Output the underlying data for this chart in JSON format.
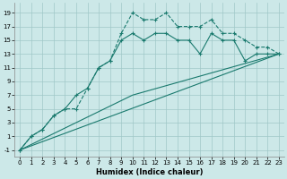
{
  "xlabel": "Humidex (Indice chaleur)",
  "bg_color": "#cce8e8",
  "grid_color": "#a0c8c8",
  "line_color": "#1a7a6e",
  "xlim": [
    -0.5,
    23.5
  ],
  "ylim": [
    -2,
    20.5
  ],
  "xticks": [
    0,
    1,
    2,
    3,
    4,
    5,
    6,
    7,
    8,
    9,
    10,
    11,
    12,
    13,
    14,
    15,
    16,
    17,
    18,
    19,
    20,
    21,
    22,
    23
  ],
  "yticks": [
    -1,
    1,
    3,
    5,
    7,
    9,
    11,
    13,
    15,
    17,
    19
  ],
  "line1_x": [
    0,
    1,
    2,
    3,
    4,
    5,
    6,
    7,
    8,
    9,
    10,
    11,
    12,
    13,
    14,
    15,
    16,
    17,
    18,
    19,
    20,
    21,
    22,
    23
  ],
  "line1_y": [
    -1,
    1,
    2,
    4,
    5,
    7,
    8,
    11,
    12,
    15,
    16,
    15,
    16,
    16,
    15,
    15,
    13,
    16,
    15,
    15,
    12,
    13,
    13,
    13
  ],
  "line2_x": [
    0,
    1,
    2,
    3,
    4,
    5,
    6,
    7,
    8,
    9,
    10,
    11,
    12,
    13,
    14,
    15,
    16,
    17,
    18,
    19,
    20,
    21,
    22,
    23
  ],
  "line2_y": [
    -1,
    1,
    2,
    4,
    5,
    5,
    8,
    11,
    12,
    16,
    19,
    18,
    18,
    19,
    17,
    17,
    17,
    18,
    16,
    16,
    15,
    14,
    14,
    13
  ],
  "line3_x": [
    0,
    23
  ],
  "line3_y": [
    -1,
    13
  ],
  "line4_x": [
    0,
    10,
    23
  ],
  "line4_y": [
    -1,
    7,
    13
  ]
}
